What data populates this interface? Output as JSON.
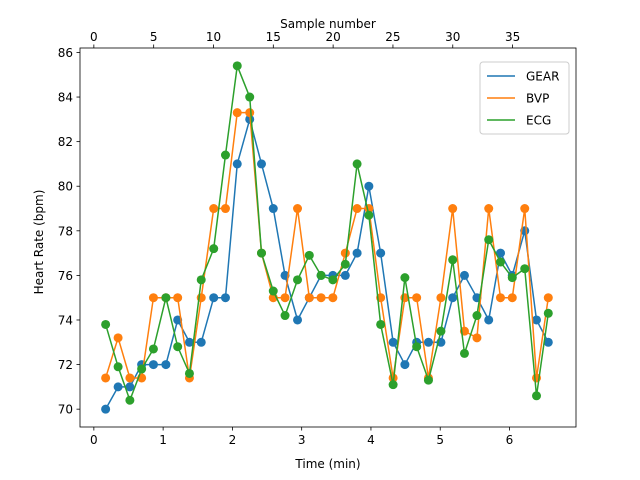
{
  "chart_data": {
    "type": "line",
    "xlabel": "Time (min)",
    "ylabel": "Heart Rate (bpm)",
    "top_xlabel": "Sample number",
    "xlim": [
      -0.2,
      6.96
    ],
    "ylim": [
      69.2,
      86.2
    ],
    "x_ticks": [
      0,
      1,
      2,
      3,
      4,
      5,
      6
    ],
    "y_ticks": [
      70,
      72,
      74,
      76,
      78,
      80,
      82,
      84,
      86
    ],
    "top_ticks": [
      0,
      5,
      10,
      15,
      20,
      25,
      30,
      35
    ],
    "sample_interval_min": 0.1727,
    "legend_position": "upper right",
    "grid": false,
    "x": [
      0.17,
      0.35,
      0.52,
      0.69,
      0.86,
      1.04,
      1.21,
      1.38,
      1.55,
      1.73,
      1.9,
      2.07,
      2.25,
      2.42,
      2.59,
      2.76,
      2.94,
      3.11,
      3.28,
      3.45,
      3.63,
      3.8,
      3.97,
      4.14,
      4.32,
      4.49,
      4.66,
      4.83,
      5.01,
      5.18,
      5.35,
      5.53,
      5.7,
      5.87,
      6.04,
      6.22,
      6.39,
      6.56
    ],
    "series": [
      {
        "name": "GEAR",
        "color": "#1f77b4",
        "values": [
          70.0,
          71.0,
          71.0,
          72.0,
          72.0,
          72.0,
          74.0,
          73.0,
          73.0,
          75.0,
          75.0,
          81.0,
          83.0,
          81.0,
          79.0,
          76.0,
          74.0,
          75.0,
          76.0,
          76.0,
          76.0,
          77.0,
          80.0,
          77.0,
          73.0,
          72.0,
          73.0,
          73.0,
          73.0,
          75.0,
          76.0,
          75.0,
          74.0,
          77.0,
          76.0,
          78.0,
          74.0,
          73.0
        ]
      },
      {
        "name": "BVP",
        "color": "#ff7f0e",
        "values": [
          71.4,
          73.2,
          71.4,
          71.4,
          75.0,
          75.0,
          75.0,
          71.4,
          75.0,
          79.0,
          79.0,
          83.3,
          83.3,
          77.0,
          75.0,
          75.0,
          79.0,
          75.0,
          75.0,
          75.0,
          77.0,
          79.0,
          79.0,
          75.0,
          71.4,
          75.0,
          75.0,
          71.4,
          75.0,
          79.0,
          73.5,
          73.2,
          79.0,
          75.0,
          75.0,
          79.0,
          71.4,
          75.0
        ]
      },
      {
        "name": "ECG",
        "color": "#2ca02c",
        "values": [
          73.8,
          71.9,
          70.4,
          71.8,
          72.7,
          75.0,
          72.8,
          71.6,
          75.8,
          77.2,
          81.4,
          85.4,
          84.0,
          77.0,
          75.3,
          74.2,
          75.8,
          76.9,
          76.0,
          75.8,
          76.5,
          81.0,
          78.7,
          73.8,
          71.1,
          75.9,
          72.8,
          71.3,
          73.5,
          76.7,
          72.5,
          74.2,
          77.6,
          76.6,
          75.9,
          76.3,
          70.6,
          74.3
        ]
      }
    ]
  }
}
